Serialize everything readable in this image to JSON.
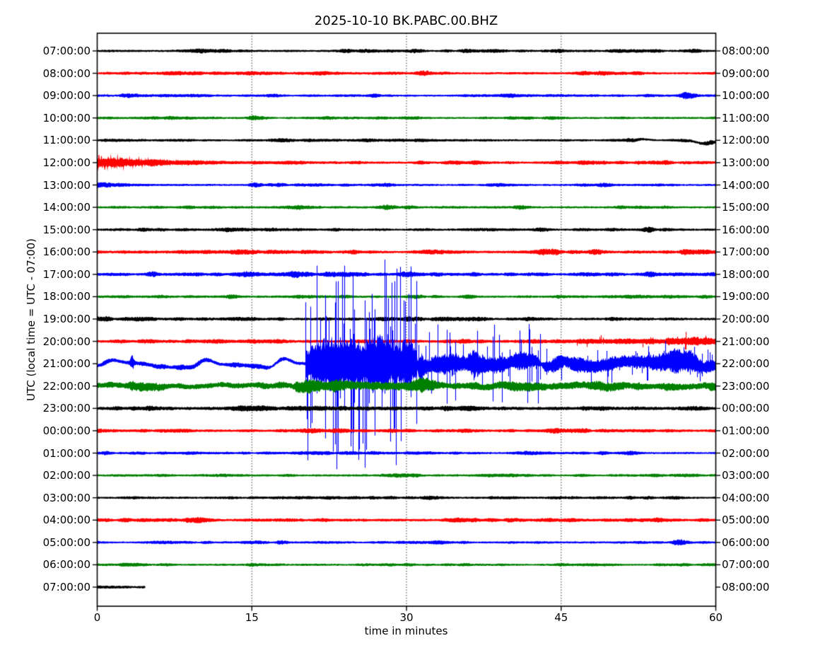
{
  "title": "2025-10-10 BK.PABC.00.BHZ",
  "chart_data": {
    "type": "line",
    "subtype": "seismogram-dayplot",
    "title": "2025-10-10 BK.PABC.00.BHZ",
    "xlabel": "time in minutes",
    "ylabel": "UTC (local time = UTC - 07:00)",
    "x_ticks": [
      0,
      15,
      30,
      45,
      60
    ],
    "x_range_minutes": [
      0,
      60
    ],
    "grid_minutes": [
      15,
      30,
      45
    ],
    "grid_style": "dotted",
    "minutes_per_row": 60,
    "color_cycle": [
      "#000000",
      "#ff0000",
      "#0000ff",
      "#008000"
    ],
    "left_axis": "row start time (UTC)",
    "right_axis": "row end time",
    "rows": [
      {
        "utc": "07:00:00",
        "local": "08:00:00",
        "color": "#000000",
        "base_amp": 2.6,
        "end_min": 60,
        "events": [
          {
            "type": "burst",
            "t": 10,
            "amp": 1.2
          },
          {
            "type": "burst",
            "t": 24,
            "amp": 1.6
          },
          {
            "type": "burst",
            "t": 31,
            "amp": 2.2
          },
          {
            "type": "burst",
            "t": 44.8,
            "amp": 1.4
          },
          {
            "type": "burst",
            "t": 50,
            "amp": 1.2
          }
        ]
      },
      {
        "utc": "08:00:00",
        "local": "09:00:00",
        "color": "#ff0000",
        "base_amp": 2.8,
        "end_min": 60,
        "events": [
          {
            "type": "burst",
            "t": 7,
            "amp": 1.5
          },
          {
            "type": "burst",
            "t": 14.5,
            "amp": 2.0
          },
          {
            "type": "burst",
            "t": 21.5,
            "amp": 2.4
          },
          {
            "type": "burst",
            "t": 31.5,
            "amp": 1.8
          },
          {
            "type": "burst",
            "t": 52,
            "amp": 1.2
          }
        ]
      },
      {
        "utc": "09:00:00",
        "local": "10:00:00",
        "color": "#0000ff",
        "base_amp": 2.4,
        "end_min": 60,
        "events": [
          {
            "type": "burst",
            "t": 6.5,
            "amp": 1.6
          },
          {
            "type": "burst",
            "t": 17,
            "amp": 1.5
          },
          {
            "type": "burst",
            "t": 27,
            "amp": 1.2
          },
          {
            "type": "burst",
            "t": 40,
            "amp": 1.2
          },
          {
            "type": "burst",
            "t": 57,
            "amp": 1.8
          }
        ]
      },
      {
        "utc": "10:00:00",
        "local": "11:00:00",
        "color": "#008000",
        "base_amp": 2.4,
        "end_min": 60,
        "events": [
          {
            "type": "burst",
            "t": 15,
            "amp": 1.2
          },
          {
            "type": "burst",
            "t": 22.5,
            "amp": 1.6
          },
          {
            "type": "burst",
            "t": 30.5,
            "amp": 1.4
          },
          {
            "type": "burst",
            "t": 44.5,
            "amp": 1.6
          }
        ]
      },
      {
        "utc": "11:00:00",
        "local": "12:00:00",
        "color": "#000000",
        "base_amp": 2.4,
        "end_min": 60,
        "events": [
          {
            "type": "burst",
            "t": 18,
            "amp": 1.2
          },
          {
            "type": "burst",
            "t": 26.5,
            "amp": 2.2
          },
          {
            "type": "burst",
            "t": 32,
            "amp": 1.4
          },
          {
            "type": "wander",
            "t0": 52,
            "t1": 60,
            "amp": 4.5
          },
          {
            "type": "burst",
            "t": 59.5,
            "amp": 3.5,
            "sigma": 0.4
          }
        ]
      },
      {
        "utc": "12:00:00",
        "local": "13:00:00",
        "color": "#ff0000",
        "base_amp": 2.8,
        "end_min": 60,
        "events": [
          {
            "type": "decay",
            "t0": 0,
            "t1": 20,
            "amp": 11
          },
          {
            "type": "burst",
            "t": 25,
            "amp": 1.4
          },
          {
            "type": "burst",
            "t": 31.5,
            "amp": 2.2
          },
          {
            "type": "burst",
            "t": 37,
            "amp": 1.6
          },
          {
            "type": "burst",
            "t": 47,
            "amp": 1.5
          },
          {
            "type": "burst",
            "t": 54,
            "amp": 1.5
          }
        ]
      },
      {
        "utc": "13:00:00",
        "local": "14:00:00",
        "color": "#0000ff",
        "base_amp": 2.4,
        "end_min": 60,
        "events": [
          {
            "type": "decay",
            "t0": 0,
            "t1": 12,
            "amp": 2.5
          },
          {
            "type": "burst",
            "t": 15.5,
            "amp": 1.6
          },
          {
            "type": "burst",
            "t": 28,
            "amp": 1.2
          },
          {
            "type": "burst",
            "t": 49,
            "amp": 1.2
          }
        ]
      },
      {
        "utc": "14:00:00",
        "local": "15:00:00",
        "color": "#008000",
        "base_amp": 2.6,
        "end_min": 60,
        "events": [
          {
            "type": "burst",
            "t": 6,
            "amp": 1.2
          },
          {
            "type": "burst",
            "t": 28,
            "amp": 1.4
          },
          {
            "type": "burst",
            "t": 41,
            "amp": 1.8
          },
          {
            "type": "burst",
            "t": 55,
            "amp": 1.2
          }
        ]
      },
      {
        "utc": "15:00:00",
        "local": "16:00:00",
        "color": "#000000",
        "base_amp": 2.6,
        "end_min": 60,
        "events": [
          {
            "type": "burst",
            "t": 13,
            "amp": 1.5
          },
          {
            "type": "burst",
            "t": 23,
            "amp": 1.6
          },
          {
            "type": "burst",
            "t": 32,
            "amp": 1.2
          },
          {
            "type": "burst",
            "t": 43,
            "amp": 1.6
          },
          {
            "type": "burst",
            "t": 53.5,
            "amp": 1.2
          }
        ]
      },
      {
        "utc": "16:00:00",
        "local": "17:00:00",
        "color": "#ff0000",
        "base_amp": 3.0,
        "end_min": 60,
        "events": [
          {
            "type": "burst",
            "t": 9,
            "amp": 1.4
          },
          {
            "type": "burst",
            "t": 25,
            "amp": 1.5
          },
          {
            "type": "burst",
            "t": 43.5,
            "amp": 3.5
          },
          {
            "type": "burst",
            "t": 48.5,
            "amp": 3.8
          },
          {
            "type": "burst",
            "t": 57,
            "amp": 1.5
          }
        ]
      },
      {
        "utc": "17:00:00",
        "local": "18:00:00",
        "color": "#0000ff",
        "base_amp": 2.8,
        "end_min": 60,
        "events": [
          {
            "type": "burst",
            "t": 5.5,
            "amp": 2.2
          },
          {
            "type": "burst",
            "t": 15,
            "amp": 2.2
          },
          {
            "type": "burst",
            "t": 19,
            "amp": 1.8
          },
          {
            "type": "burst",
            "t": 30,
            "amp": 1.4
          },
          {
            "type": "burst",
            "t": 43,
            "amp": 1.6
          },
          {
            "type": "burst",
            "t": 54,
            "amp": 1.4
          }
        ]
      },
      {
        "utc": "18:00:00",
        "local": "19:00:00",
        "color": "#008000",
        "base_amp": 2.6,
        "end_min": 60,
        "events": [
          {
            "type": "burst",
            "t": 13,
            "amp": 2.2
          },
          {
            "type": "burst",
            "t": 24,
            "amp": 1.2
          },
          {
            "type": "burst",
            "t": 36,
            "amp": 3.4
          },
          {
            "type": "burst",
            "t": 45,
            "amp": 1.6
          },
          {
            "type": "burst",
            "t": 59,
            "amp": 1.6
          }
        ]
      },
      {
        "utc": "19:00:00",
        "local": "20:00:00",
        "color": "#000000",
        "base_amp": 2.8,
        "end_min": 60,
        "events": [
          {
            "type": "burst",
            "t": 10,
            "amp": 1.2
          },
          {
            "type": "burst",
            "t": 22,
            "amp": 1.4
          },
          {
            "type": "burst",
            "t": 30,
            "amp": 1.6
          },
          {
            "type": "burst",
            "t": 37.5,
            "amp": 1.6
          },
          {
            "type": "burst",
            "t": 50,
            "amp": 1.2
          }
        ]
      },
      {
        "utc": "20:00:00",
        "local": "21:00:00",
        "color": "#ff0000",
        "base_amp": 3.2,
        "end_min": 60,
        "events": [
          {
            "type": "burst",
            "t": 12,
            "amp": 1.4
          },
          {
            "type": "burst",
            "t": 26,
            "amp": 1.4
          },
          {
            "type": "range",
            "t0": 46.5,
            "t1": 55,
            "amp": 2.5,
            "spike": 9,
            "sp": 0.12
          },
          {
            "type": "range",
            "t0": 55,
            "t1": 60,
            "amp": 4.5,
            "spike": 14,
            "sp": 0.18
          }
        ]
      },
      {
        "utc": "21:00:00",
        "local": "22:00:00",
        "color": "#0000ff",
        "base_amp": 3.5,
        "end_min": 60,
        "events": [
          {
            "type": "wander",
            "t0": 0,
            "t1": 20,
            "amp": 7.5
          },
          {
            "type": "burst",
            "t": 3.4,
            "amp": 12,
            "sigma": 0.2
          },
          {
            "type": "range",
            "t0": 20.2,
            "t1": 31,
            "amp": 36,
            "spike": 150,
            "sp": 0.5
          },
          {
            "type": "range",
            "t0": 31,
            "t1": 43,
            "amp": 15,
            "spike": 60,
            "sp": 0.3
          },
          {
            "type": "range",
            "t0": 43,
            "t1": 60,
            "amp": 10,
            "spike": 30,
            "sp": 0.25
          },
          {
            "type": "wander",
            "t0": 31,
            "t1": 60,
            "amp": 5
          },
          {
            "type": "burst",
            "t": 57.5,
            "amp": 6,
            "sigma": 1.2
          }
        ]
      },
      {
        "utc": "22:00:00",
        "local": "23:00:00",
        "color": "#008000",
        "base_amp": 6.0,
        "end_min": 60,
        "events": [
          {
            "type": "range",
            "t0": 19,
            "t1": 33,
            "amp": 4.5
          },
          {
            "type": "range",
            "t0": 33,
            "t1": 60,
            "amp": 1.2
          },
          {
            "type": "wander",
            "t0": 0,
            "t1": 60,
            "amp": 2
          }
        ]
      },
      {
        "utc": "23:00:00",
        "local": "00:00:00",
        "color": "#000000",
        "base_amp": 3.4,
        "end_min": 60,
        "events": [
          {
            "type": "burst",
            "t": 5,
            "amp": 1.0
          },
          {
            "type": "range",
            "t0": 19.5,
            "t1": 30.5,
            "amp": 1.2
          },
          {
            "type": "burst",
            "t": 40,
            "amp": 0.8
          }
        ]
      },
      {
        "utc": "00:00:00",
        "local": "01:00:00",
        "color": "#ff0000",
        "base_amp": 3.0,
        "end_min": 60,
        "events": [
          {
            "type": "burst",
            "t": 9,
            "amp": 1.0
          },
          {
            "type": "burst",
            "t": 20.5,
            "amp": 1.6
          },
          {
            "type": "burst",
            "t": 30,
            "amp": 1.4
          },
          {
            "type": "burst",
            "t": 44,
            "amp": 1.0
          }
        ]
      },
      {
        "utc": "01:00:00",
        "local": "02:00:00",
        "color": "#0000ff",
        "base_amp": 2.5,
        "end_min": 60,
        "events": [
          {
            "type": "burst",
            "t": 9,
            "amp": 1.1
          },
          {
            "type": "burst",
            "t": 27,
            "amp": 1.0
          },
          {
            "type": "burst",
            "t": 52,
            "amp": 1.1
          }
        ]
      },
      {
        "utc": "02:00:00",
        "local": "03:00:00",
        "color": "#008000",
        "base_amp": 2.4,
        "end_min": 60,
        "events": [
          {
            "type": "burst",
            "t": 12,
            "amp": 1.0
          },
          {
            "type": "burst",
            "t": 30.5,
            "amp": 2.6
          },
          {
            "type": "burst",
            "t": 47,
            "amp": 1.0
          }
        ]
      },
      {
        "utc": "03:00:00",
        "local": "04:00:00",
        "color": "#000000",
        "base_amp": 2.6,
        "end_min": 60,
        "events": [
          {
            "type": "burst",
            "t": 25,
            "amp": 1.4
          },
          {
            "type": "burst",
            "t": 32,
            "amp": 1.8
          },
          {
            "type": "burst",
            "t": 44.5,
            "amp": 1.8
          },
          {
            "type": "burst",
            "t": 56,
            "amp": 1.0
          }
        ]
      },
      {
        "utc": "04:00:00",
        "local": "05:00:00",
        "color": "#ff0000",
        "base_amp": 3.0,
        "end_min": 60,
        "events": [
          {
            "type": "burst",
            "t": 10,
            "amp": 1.2
          },
          {
            "type": "burst",
            "t": 22,
            "amp": 1.0
          },
          {
            "type": "burst",
            "t": 35,
            "amp": 1.2
          },
          {
            "type": "burst",
            "t": 50,
            "amp": 1.0
          }
        ]
      },
      {
        "utc": "05:00:00",
        "local": "06:00:00",
        "color": "#0000ff",
        "base_amp": 2.3,
        "end_min": 60,
        "events": [
          {
            "type": "burst",
            "t": 18,
            "amp": 0.9
          },
          {
            "type": "burst",
            "t": 33,
            "amp": 1.1
          },
          {
            "type": "burst",
            "t": 56.5,
            "amp": 2.0
          }
        ]
      },
      {
        "utc": "06:00:00",
        "local": "07:00:00",
        "color": "#008000",
        "base_amp": 2.3,
        "end_min": 60,
        "events": [
          {
            "type": "burst",
            "t": 15,
            "amp": 0.9
          },
          {
            "type": "burst",
            "t": 30,
            "amp": 0.9
          },
          {
            "type": "burst",
            "t": 45,
            "amp": 1.1
          }
        ]
      },
      {
        "utc": "07:00:00",
        "local": "08:00:00",
        "color": "#000000",
        "base_amp": 2.6,
        "end_min": 4.7,
        "events": []
      }
    ]
  }
}
